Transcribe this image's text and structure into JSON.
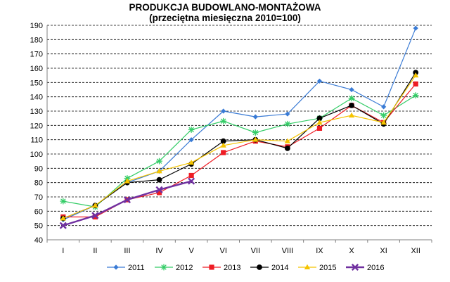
{
  "chart_data": {
    "type": "line",
    "title": "PRODUKCJA BUDOWLANO-MONTAŻOWA",
    "subtitle": "(przeciętna miesięczna 2010=100)",
    "xlabel": "",
    "ylabel": "",
    "categories": [
      "I",
      "II",
      "III",
      "IV",
      "V",
      "VI",
      "VII",
      "VIII",
      "IX",
      "X",
      "XI",
      "XII"
    ],
    "ylim": [
      40,
      190
    ],
    "yticks": [
      40,
      50,
      60,
      70,
      80,
      90,
      100,
      110,
      120,
      130,
      140,
      150,
      160,
      170,
      180,
      190
    ],
    "grid": "horizontal dashed",
    "legend_position": "bottom",
    "series": [
      {
        "name": "2011",
        "color": "#3A7BD5",
        "marker": "diamond",
        "values": [
          54,
          64,
          80,
          88,
          110,
          130,
          126,
          128,
          151,
          145,
          133,
          188
        ]
      },
      {
        "name": "2012",
        "color": "#33CC66",
        "marker": "star",
        "values": [
          67,
          63,
          83,
          95,
          117,
          123,
          115,
          121,
          125,
          139,
          127,
          141
        ]
      },
      {
        "name": "2013",
        "color": "#EE1C24",
        "marker": "square",
        "values": [
          56,
          56,
          68,
          73,
          85,
          101,
          109,
          105,
          118,
          134,
          122,
          149
        ]
      },
      {
        "name": "2014",
        "color": "#000000",
        "marker": "circle",
        "values": [
          55,
          64,
          80,
          82,
          93,
          109,
          110,
          104,
          125,
          134,
          121,
          157
        ]
      },
      {
        "name": "2015",
        "color": "#F5C400",
        "marker": "triangle",
        "values": [
          55,
          64,
          81,
          88,
          94,
          106,
          110,
          109,
          122,
          127,
          122,
          155
        ]
      },
      {
        "name": "2016",
        "color": "#7030A0",
        "marker": "x",
        "values": [
          50,
          57,
          68,
          75,
          81,
          null,
          null,
          null,
          null,
          null,
          null,
          null
        ]
      }
    ]
  }
}
